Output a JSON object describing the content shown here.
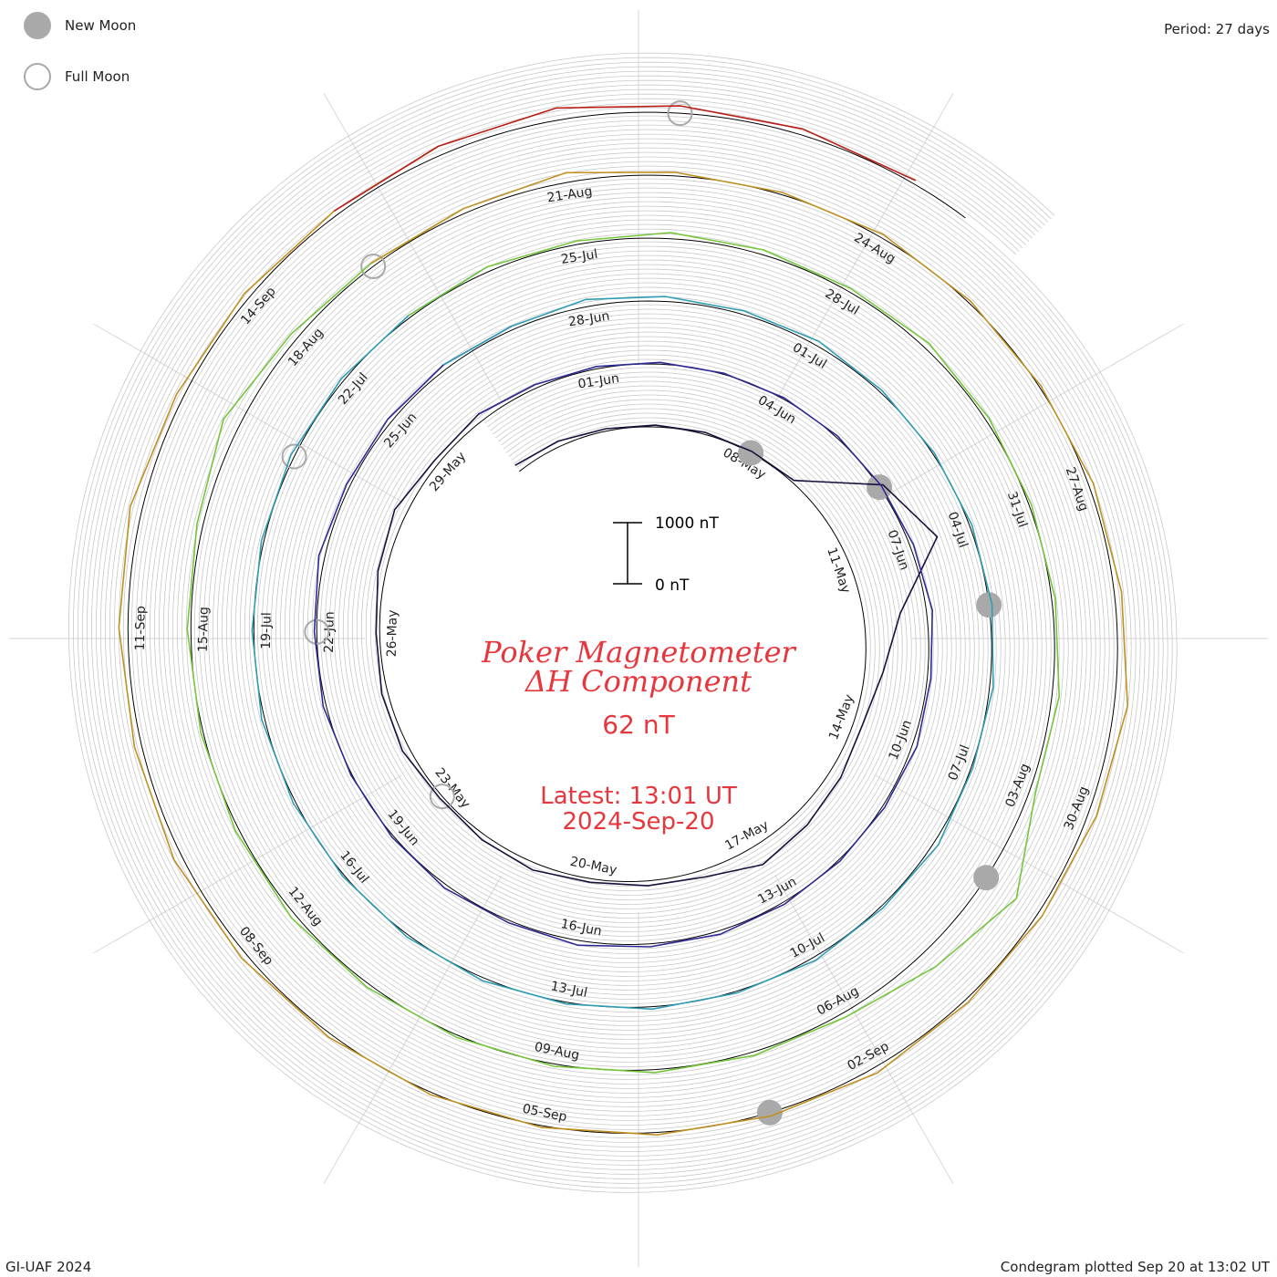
{
  "legend": [
    {
      "label": "New Moon",
      "marker": "filled"
    },
    {
      "label": "Full Moon",
      "marker": "hollow"
    }
  ],
  "period_label": "Period: 27 days",
  "footer_left": "GI-UAF 2024",
  "footer_right": "Condegram plotted Sep 20 at 13:02 UT",
  "title_line1": "Poker Magnetometer",
  "title_line2": "ΔH Component",
  "current_value": "62 nT",
  "latest_line1": "Latest: 13:01 UT",
  "latest_line2": "2024-Sep-20",
  "scale_bar": {
    "top_label": "1000 nT",
    "bottom_label": "0 nT"
  },
  "colors": {
    "title": "#e8363d",
    "moon_marker": "#a9a9a9",
    "gridlines": "#c8c8c8",
    "baseline": "#000000"
  },
  "chart_data": {
    "type": "line",
    "chart_kind": "spiral condegram (one revolution = 27 days)",
    "start_date": "2024-05-03",
    "end_date": "2024-09-20",
    "period_days": 27,
    "scale_nT_per_bar": 1000,
    "date_labels": [
      "08-May",
      "11-May",
      "14-May",
      "17-May",
      "20-May",
      "23-May",
      "26-May",
      "29-May",
      "01-Jun",
      "04-Jun",
      "07-Jun",
      "10-Jun",
      "13-Jun",
      "16-Jun",
      "19-Jun",
      "22-Jun",
      "25-Jun",
      "28-Jun",
      "01-Jul",
      "04-Jul",
      "07-Jul",
      "10-Jul",
      "13-Jul",
      "16-Jul",
      "19-Jul",
      "22-Jul",
      "25-Jul",
      "28-Jul",
      "31-Jul",
      "03-Aug",
      "06-Aug",
      "09-Aug",
      "12-Aug",
      "15-Aug",
      "18-Aug",
      "21-Aug",
      "24-Aug",
      "27-Aug",
      "30-Aug",
      "02-Sep",
      "05-Sep",
      "08-Sep",
      "11-Sep",
      "14-Sep"
    ],
    "new_moons": [
      "2024-05-08",
      "2024-06-06",
      "2024-07-05",
      "2024-08-04",
      "2024-09-03"
    ],
    "full_moons": [
      "2024-05-23",
      "2024-06-22",
      "2024-07-21",
      "2024-08-19",
      "2024-09-18"
    ],
    "daily_deltaH_nT": [
      {
        "date": "2024-05-03",
        "value": 120
      },
      {
        "date": "2024-05-04",
        "value": 90
      },
      {
        "date": "2024-05-05",
        "value": 40
      },
      {
        "date": "2024-05-06",
        "value": 30
      },
      {
        "date": "2024-05-07",
        "value": 35
      },
      {
        "date": "2024-05-08",
        "value": 30
      },
      {
        "date": "2024-05-09",
        "value": 40
      },
      {
        "date": "2024-05-10",
        "value": 1100
      },
      {
        "date": "2024-05-11",
        "value": 1500
      },
      {
        "date": "2024-05-12",
        "value": 600
      },
      {
        "date": "2024-05-13",
        "value": 300
      },
      {
        "date": "2024-05-14",
        "value": 150
      },
      {
        "date": "2024-05-15",
        "value": 200
      },
      {
        "date": "2024-05-16",
        "value": 260
      },
      {
        "date": "2024-05-17",
        "value": 330
      },
      {
        "date": "2024-05-18",
        "value": 120
      },
      {
        "date": "2024-05-19",
        "value": 80
      },
      {
        "date": "2024-05-20",
        "value": 60
      },
      {
        "date": "2024-05-21",
        "value": 120
      },
      {
        "date": "2024-05-22",
        "value": 90
      },
      {
        "date": "2024-05-23",
        "value": 50
      },
      {
        "date": "2024-05-24",
        "value": 120
      },
      {
        "date": "2024-05-25",
        "value": 100
      },
      {
        "date": "2024-05-26",
        "value": 60
      },
      {
        "date": "2024-05-27",
        "value": 130
      },
      {
        "date": "2024-05-28",
        "value": 200
      },
      {
        "date": "2024-05-29",
        "value": 80
      },
      {
        "date": "2024-05-30",
        "value": 120
      },
      {
        "date": "2024-05-31",
        "value": 60
      },
      {
        "date": "2024-06-01",
        "value": 40
      },
      {
        "date": "2024-06-02",
        "value": 30
      },
      {
        "date": "2024-06-03",
        "value": 20
      },
      {
        "date": "2024-06-04",
        "value": 25
      },
      {
        "date": "2024-06-05",
        "value": 30
      },
      {
        "date": "2024-06-06",
        "value": 40
      },
      {
        "date": "2024-06-07",
        "value": 60
      },
      {
        "date": "2024-06-08",
        "value": 100
      },
      {
        "date": "2024-06-09",
        "value": 60
      },
      {
        "date": "2024-06-10",
        "value": 80
      },
      {
        "date": "2024-06-11",
        "value": 40
      },
      {
        "date": "2024-06-12",
        "value": 30
      },
      {
        "date": "2024-06-13",
        "value": 40
      },
      {
        "date": "2024-06-14",
        "value": 60
      },
      {
        "date": "2024-06-15",
        "value": 50
      },
      {
        "date": "2024-06-16",
        "value": 80
      },
      {
        "date": "2024-06-17",
        "value": 40
      },
      {
        "date": "2024-06-18",
        "value": 60
      },
      {
        "date": "2024-06-19",
        "value": 30
      },
      {
        "date": "2024-06-20",
        "value": 20
      },
      {
        "date": "2024-06-21",
        "value": 50
      },
      {
        "date": "2024-06-22",
        "value": 40
      },
      {
        "date": "2024-06-23",
        "value": 100
      },
      {
        "date": "2024-06-24",
        "value": 60
      },
      {
        "date": "2024-06-25",
        "value": 70
      },
      {
        "date": "2024-06-26",
        "value": 80
      },
      {
        "date": "2024-06-27",
        "value": 60
      },
      {
        "date": "2024-06-28",
        "value": 120
      },
      {
        "date": "2024-06-29",
        "value": 80
      },
      {
        "date": "2024-06-30",
        "value": 60
      },
      {
        "date": "2024-07-01",
        "value": 80
      },
      {
        "date": "2024-07-02",
        "value": 40
      },
      {
        "date": "2024-07-03",
        "value": 30
      },
      {
        "date": "2024-07-04",
        "value": 40
      },
      {
        "date": "2024-07-05",
        "value": 50
      },
      {
        "date": "2024-07-06",
        "value": 60
      },
      {
        "date": "2024-07-07",
        "value": 30
      },
      {
        "date": "2024-07-08",
        "value": 80
      },
      {
        "date": "2024-07-09",
        "value": 40
      },
      {
        "date": "2024-07-10",
        "value": 60
      },
      {
        "date": "2024-07-11",
        "value": 30
      },
      {
        "date": "2024-07-12",
        "value": 40
      },
      {
        "date": "2024-07-13",
        "value": 30
      },
      {
        "date": "2024-07-14",
        "value": 50
      },
      {
        "date": "2024-07-15",
        "value": 40
      },
      {
        "date": "2024-07-16",
        "value": 30
      },
      {
        "date": "2024-07-17",
        "value": 40
      },
      {
        "date": "2024-07-18",
        "value": 50
      },
      {
        "date": "2024-07-19",
        "value": 30
      },
      {
        "date": "2024-07-20",
        "value": 40
      },
      {
        "date": "2024-07-21",
        "value": 60
      },
      {
        "date": "2024-07-22",
        "value": 50
      },
      {
        "date": "2024-07-23",
        "value": 40
      },
      {
        "date": "2024-07-24",
        "value": 80
      },
      {
        "date": "2024-07-25",
        "value": 60
      },
      {
        "date": "2024-07-26",
        "value": 100
      },
      {
        "date": "2024-07-27",
        "value": 80
      },
      {
        "date": "2024-07-28",
        "value": 60
      },
      {
        "date": "2024-07-29",
        "value": 100
      },
      {
        "date": "2024-07-30",
        "value": 60
      },
      {
        "date": "2024-07-31",
        "value": 40
      },
      {
        "date": "2024-08-01",
        "value": 60
      },
      {
        "date": "2024-08-02",
        "value": 120
      },
      {
        "date": "2024-08-03",
        "value": 100
      },
      {
        "date": "2024-08-04",
        "value": 600
      },
      {
        "date": "2024-08-05",
        "value": 300
      },
      {
        "date": "2024-08-06",
        "value": 80
      },
      {
        "date": "2024-08-07",
        "value": 60
      },
      {
        "date": "2024-08-08",
        "value": 50
      },
      {
        "date": "2024-08-09",
        "value": 40
      },
      {
        "date": "2024-08-10",
        "value": 40
      },
      {
        "date": "2024-08-11",
        "value": 60
      },
      {
        "date": "2024-08-12",
        "value": 80
      },
      {
        "date": "2024-08-13",
        "value": 60
      },
      {
        "date": "2024-08-14",
        "value": 40
      },
      {
        "date": "2024-08-15",
        "value": 60
      },
      {
        "date": "2024-08-16",
        "value": 100
      },
      {
        "date": "2024-08-17",
        "value": 280
      },
      {
        "date": "2024-08-18",
        "value": 120
      },
      {
        "date": "2024-08-19",
        "value": 60
      },
      {
        "date": "2024-08-20",
        "value": 80
      },
      {
        "date": "2024-08-21",
        "value": 160
      },
      {
        "date": "2024-08-22",
        "value": 60
      },
      {
        "date": "2024-08-23",
        "value": 40
      },
      {
        "date": "2024-08-24",
        "value": 60
      },
      {
        "date": "2024-08-25",
        "value": 40
      },
      {
        "date": "2024-08-26",
        "value": 30
      },
      {
        "date": "2024-08-27",
        "value": 80
      },
      {
        "date": "2024-08-28",
        "value": 120
      },
      {
        "date": "2024-08-29",
        "value": 220
      },
      {
        "date": "2024-08-30",
        "value": 140
      },
      {
        "date": "2024-08-31",
        "value": 80
      },
      {
        "date": "2024-09-01",
        "value": 60
      },
      {
        "date": "2024-09-02",
        "value": 100
      },
      {
        "date": "2024-09-03",
        "value": 60
      },
      {
        "date": "2024-09-04",
        "value": 40
      },
      {
        "date": "2024-09-05",
        "value": 30
      },
      {
        "date": "2024-09-06",
        "value": 40
      },
      {
        "date": "2024-09-07",
        "value": 60
      },
      {
        "date": "2024-09-08",
        "value": 100
      },
      {
        "date": "2024-09-09",
        "value": 140
      },
      {
        "date": "2024-09-10",
        "value": 120
      },
      {
        "date": "2024-09-11",
        "value": 150
      },
      {
        "date": "2024-09-12",
        "value": 200
      },
      {
        "date": "2024-09-13",
        "value": 120
      },
      {
        "date": "2024-09-14",
        "value": 100
      },
      {
        "date": "2024-09-15",
        "value": 80
      },
      {
        "date": "2024-09-16",
        "value": 150
      },
      {
        "date": "2024-09-17",
        "value": 200
      },
      {
        "date": "2024-09-18",
        "value": 120
      },
      {
        "date": "2024-09-19",
        "value": 100
      },
      {
        "date": "2024-09-20",
        "value": 62
      }
    ]
  }
}
